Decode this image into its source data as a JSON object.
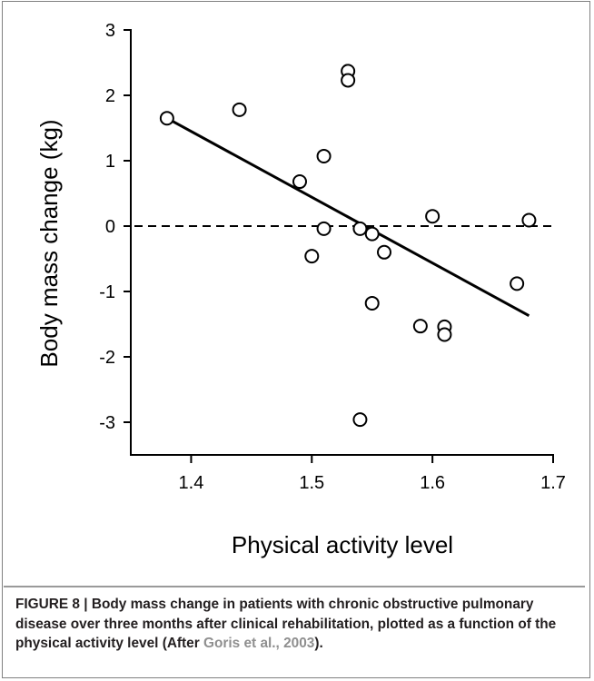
{
  "chart_data": {
    "type": "scatter",
    "xlabel": "Physical activity level",
    "ylabel": "Body mass change (kg)",
    "xlim": [
      1.35,
      1.7
    ],
    "ylim": [
      -3.5,
      3
    ],
    "x_ticks": [
      1.4,
      1.5,
      1.6,
      1.7
    ],
    "x_tick_labels": [
      "1.4",
      "1.5",
      "1.6",
      "1.7"
    ],
    "y_ticks": [
      3,
      2,
      1,
      0,
      -1,
      -2,
      -3
    ],
    "y_tick_labels": [
      "3",
      "2",
      "1",
      "0",
      "-1",
      "-2",
      "-3"
    ],
    "points": [
      {
        "x": 1.38,
        "y": 1.65
      },
      {
        "x": 1.44,
        "y": 1.78
      },
      {
        "x": 1.49,
        "y": 0.68
      },
      {
        "x": 1.5,
        "y": -0.46
      },
      {
        "x": 1.51,
        "y": 1.07
      },
      {
        "x": 1.51,
        "y": -0.04
      },
      {
        "x": 1.53,
        "y": 2.37
      },
      {
        "x": 1.53,
        "y": 2.23
      },
      {
        "x": 1.54,
        "y": -0.04
      },
      {
        "x": 1.54,
        "y": -2.96
      },
      {
        "x": 1.55,
        "y": -0.12
      },
      {
        "x": 1.55,
        "y": -1.18
      },
      {
        "x": 1.56,
        "y": -0.4
      },
      {
        "x": 1.59,
        "y": -1.53
      },
      {
        "x": 1.6,
        "y": 0.15
      },
      {
        "x": 1.61,
        "y": -1.54
      },
      {
        "x": 1.61,
        "y": -1.66
      },
      {
        "x": 1.67,
        "y": -0.88
      },
      {
        "x": 1.68,
        "y": 0.09
      }
    ],
    "regression_line": {
      "x1": 1.38,
      "y1": 1.65,
      "x2": 1.68,
      "y2": -1.37
    },
    "reference_line": {
      "y": 0,
      "style": "dashed",
      "x_start": 1.35,
      "x_end": 1.7
    },
    "grid": false,
    "legend": "none"
  },
  "caption": {
    "prefix": "FIGURE 8 | Body mass change in patients with chronic obstructive pulmonary disease over three months after clinical rehabilitation, plotted as a function of the physical activity level (After ",
    "reference": "Goris et al., 2003",
    "suffix": ")."
  },
  "colors": {
    "ink": "#000000",
    "caption_text": "#231f20",
    "reference_link": "#8f8f8f",
    "frame": "#808080"
  }
}
